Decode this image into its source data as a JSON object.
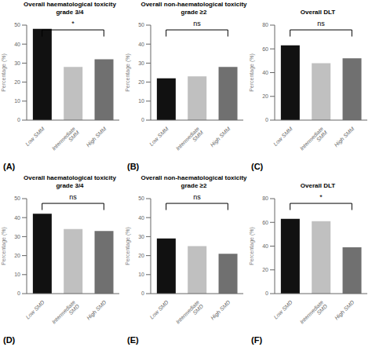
{
  "chart_data": [
    {
      "type": "bar",
      "title": "Overall haematological toxicity\ngrade 3/4",
      "ylabel": "Percentage (%)",
      "categories": [
        "Low SMM",
        "Intermediate SMM",
        "High SMM"
      ],
      "values": [
        48,
        28,
        32
      ],
      "colors": [
        "#111111",
        "#c0c0c0",
        "#707070"
      ],
      "ylim": [
        0,
        50
      ],
      "yticks": [
        0,
        10,
        20,
        30,
        40,
        50
      ],
      "annotations": [
        {
          "text": "*",
          "bracket": [
            "Low SMM",
            "High SMM"
          ]
        },
        {
          "text": "(A)"
        }
      ]
    },
    {
      "type": "bar",
      "title": "Overall non-haematological toxicity\ngrade ≥2",
      "ylabel": "Percentage (%)",
      "categories": [
        "Low SMM",
        "Intermediate SMM",
        "High SMM"
      ],
      "values": [
        22,
        23,
        28
      ],
      "colors": [
        "#111111",
        "#c0c0c0",
        "#707070"
      ],
      "ylim": [
        0,
        50
      ],
      "yticks": [
        0,
        10,
        20,
        30,
        40,
        50
      ],
      "annotations": [
        {
          "text": "ns",
          "bracket": [
            "Low SMM",
            "High SMM"
          ]
        },
        {
          "text": "(B)"
        }
      ]
    },
    {
      "type": "bar",
      "title": "Overall DLT",
      "ylabel": "Percentage (%)",
      "categories": [
        "Low SMM",
        "Intermediate SMM",
        "High SMM"
      ],
      "values": [
        63,
        48,
        52
      ],
      "colors": [
        "#111111",
        "#c0c0c0",
        "#707070"
      ],
      "ylim": [
        0,
        80
      ],
      "yticks": [
        0,
        20,
        40,
        60,
        80
      ],
      "annotations": [
        {
          "text": "ns",
          "bracket": [
            "Low SMM",
            "High SMM"
          ]
        },
        {
          "text": "(C)"
        }
      ]
    },
    {
      "type": "bar",
      "title": "Overall haematological toxicity\ngrade 3/4",
      "ylabel": "Percentage (%)",
      "categories": [
        "Low SMD",
        "Intermediate SMD",
        "High SMD"
      ],
      "values": [
        42,
        34,
        33
      ],
      "colors": [
        "#111111",
        "#c0c0c0",
        "#707070"
      ],
      "ylim": [
        0,
        50
      ],
      "yticks": [
        0,
        10,
        20,
        30,
        40,
        50
      ],
      "annotations": [
        {
          "text": "ns",
          "bracket": [
            "Low SMD",
            "High SMD"
          ]
        },
        {
          "text": "(D)"
        }
      ]
    },
    {
      "type": "bar",
      "title": "Overall non-haematological toxicity\ngrade ≥2",
      "ylabel": "Percentage (%)",
      "categories": [
        "Low SMD",
        "Intermediate SMD",
        "High SMD"
      ],
      "values": [
        29,
        25,
        21
      ],
      "colors": [
        "#111111",
        "#c0c0c0",
        "#707070"
      ],
      "ylim": [
        0,
        50
      ],
      "yticks": [
        0,
        10,
        20,
        30,
        40,
        50
      ],
      "annotations": [
        {
          "text": "ns",
          "bracket": [
            "Low SMD",
            "High SMD"
          ]
        },
        {
          "text": "(E)"
        }
      ]
    },
    {
      "type": "bar",
      "title": "Overall DLT",
      "ylabel": "Percentage (%)",
      "categories": [
        "Low SMD",
        "Intermediate SMD",
        "High SMD"
      ],
      "values": [
        63,
        61,
        39
      ],
      "colors": [
        "#111111",
        "#c0c0c0",
        "#707070"
      ],
      "ylim": [
        0,
        80
      ],
      "yticks": [
        0,
        20,
        40,
        60,
        80
      ],
      "annotations": [
        {
          "text": "*",
          "bracket": [
            "Low SMD",
            "High SMD"
          ]
        },
        {
          "text": "(F)"
        }
      ]
    }
  ]
}
